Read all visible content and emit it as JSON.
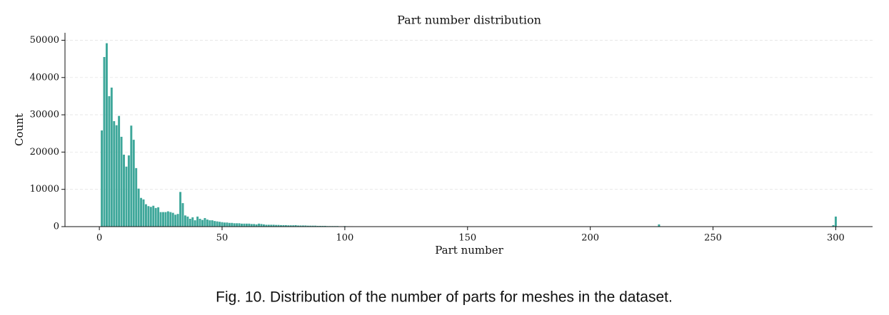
{
  "chart_data": {
    "type": "bar",
    "title": "Part number distribution",
    "x_label": "Part number",
    "y_label": "Count",
    "x": [
      1,
      2,
      3,
      4,
      5,
      6,
      7,
      8,
      9,
      10,
      11,
      12,
      13,
      14,
      15,
      16,
      17,
      18,
      19,
      20,
      21,
      22,
      23,
      24,
      25,
      26,
      27,
      28,
      29,
      30,
      31,
      32,
      33,
      34,
      35,
      36,
      37,
      38,
      39,
      40,
      41,
      42,
      43,
      44,
      45,
      46,
      47,
      48,
      49,
      50,
      51,
      52,
      53,
      54,
      55,
      56,
      57,
      58,
      59,
      60,
      61,
      62,
      63,
      64,
      65,
      66,
      67,
      68,
      69,
      70,
      71,
      72,
      73,
      74,
      75,
      76,
      77,
      78,
      79,
      80,
      81,
      82,
      83,
      84,
      85,
      86,
      87,
      88,
      89,
      90,
      91,
      92,
      93,
      94,
      95,
      96,
      97,
      98,
      99,
      100,
      101,
      102,
      103,
      104,
      105,
      106,
      107,
      108,
      109,
      110,
      228,
      299,
      300
    ],
    "values": [
      25800,
      45500,
      49200,
      35000,
      37300,
      28300,
      27200,
      29700,
      24100,
      19300,
      16100,
      19100,
      27100,
      23300,
      15700,
      10200,
      7700,
      7300,
      6000,
      5500,
      5300,
      5600,
      5000,
      5200,
      3900,
      3900,
      3900,
      4100,
      3900,
      3700,
      3200,
      3400,
      9300,
      6300,
      3000,
      2700,
      2100,
      2500,
      1700,
      2700,
      2100,
      1800,
      2300,
      1900,
      1700,
      1700,
      1500,
      1400,
      1300,
      1200,
      1100,
      1100,
      1000,
      1000,
      900,
      900,
      900,
      800,
      800,
      800,
      800,
      700,
      700,
      600,
      800,
      700,
      600,
      500,
      500,
      500,
      500,
      450,
      450,
      400,
      400,
      400,
      350,
      350,
      350,
      400,
      300,
      300,
      300,
      300,
      250,
      250,
      250,
      250,
      200,
      200,
      200,
      200,
      150,
      150,
      150,
      150,
      150,
      100,
      100,
      150,
      100,
      100,
      100,
      80,
      80,
      80,
      60,
      60,
      60,
      50,
      600,
      400,
      2700
    ],
    "color": "#3ea79a",
    "xlim": [
      -14,
      315
    ],
    "ylim": [
      0,
      52000
    ],
    "xticks": [
      0,
      50,
      100,
      150,
      200,
      250,
      300
    ],
    "yticks": [
      0,
      10000,
      20000,
      30000,
      40000,
      50000
    ],
    "grid": true
  },
  "caption": "Fig. 10.  Distribution of the number of parts for meshes in the dataset."
}
